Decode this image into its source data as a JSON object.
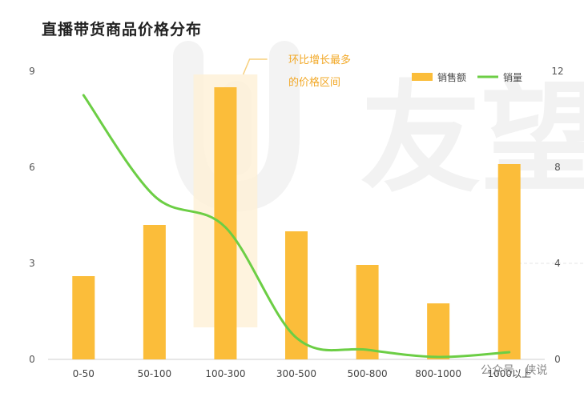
{
  "chart_data": {
    "type": "bar",
    "title": "直播带货商品价格分布",
    "categories": [
      "0-50",
      "50-100",
      "100-300",
      "300-500",
      "500-800",
      "800-1000",
      "1000以上"
    ],
    "series": [
      {
        "name": "销售额",
        "type": "bar",
        "axis": "left",
        "color": "#fbbd3a",
        "values": [
          2.6,
          4.2,
          8.5,
          4.0,
          2.95,
          1.75,
          6.1
        ]
      },
      {
        "name": "销量",
        "type": "line",
        "axis": "right",
        "color": "#6cce45",
        "values": [
          11,
          6.8,
          5.5,
          0.9,
          0.4,
          0.1,
          0.3
        ]
      }
    ],
    "y_left": {
      "ticks": [
        "0",
        "3",
        "6",
        "9"
      ],
      "lim": [
        0,
        9
      ]
    },
    "y_right": {
      "ticks": [
        "0",
        "4",
        "8",
        "12"
      ],
      "lim": [
        0,
        12
      ]
    },
    "legend": {
      "position": "top-right"
    },
    "highlight": {
      "category": "100-300",
      "label_line1": "环比增长最多",
      "label_line2": "的价格区间"
    },
    "watermark_text": "公众号 · 侠说",
    "watermark_logo_text": "友望"
  }
}
